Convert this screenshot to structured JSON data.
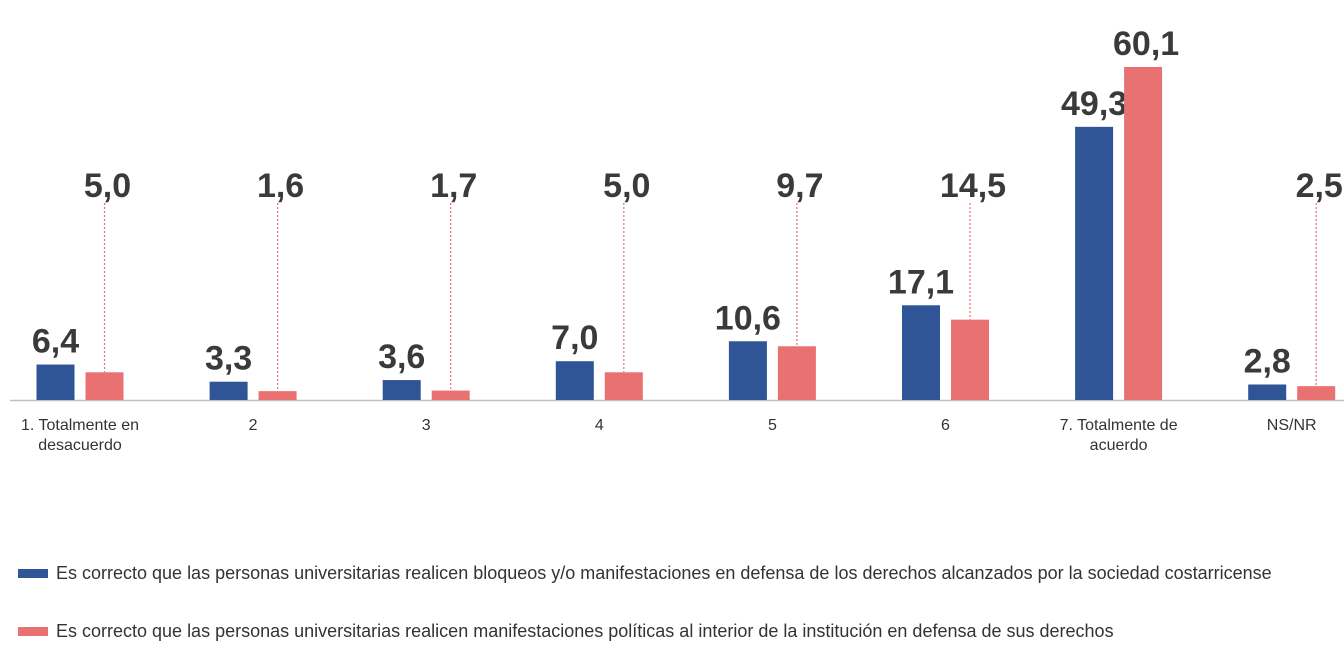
{
  "chart_data": {
    "type": "bar",
    "categories": [
      "1. Totalmente en desacuerdo",
      "2",
      "3",
      "4",
      "5",
      "6",
      "7. Totalmente de acuerdo",
      "NS/NR"
    ],
    "series": [
      {
        "name": "Es correcto que las personas universitarias realicen bloqueos y/o manifestaciones en defensa de los derechos alcanzados por la sociedad costarricense",
        "color": "#2f5597",
        "values": [
          6.4,
          3.3,
          3.6,
          7.0,
          10.6,
          17.1,
          49.3,
          2.8
        ],
        "value_labels": [
          "6,4",
          "3,3",
          "3,6",
          "7,0",
          "10,6",
          "17,1",
          "49,3",
          "2,8"
        ]
      },
      {
        "name": "Es correcto que las personas universitarias realicen manifestaciones políticas al interior de la institución en defensa de sus derechos",
        "color": "#e97171",
        "values": [
          5.0,
          1.6,
          1.7,
          5.0,
          9.7,
          14.5,
          60.1,
          2.5
        ],
        "value_labels": [
          "5,0",
          "1,6",
          "1,7",
          "5,0",
          "9,7",
          "14,5",
          "60,1",
          "2,5"
        ]
      }
    ]
  }
}
